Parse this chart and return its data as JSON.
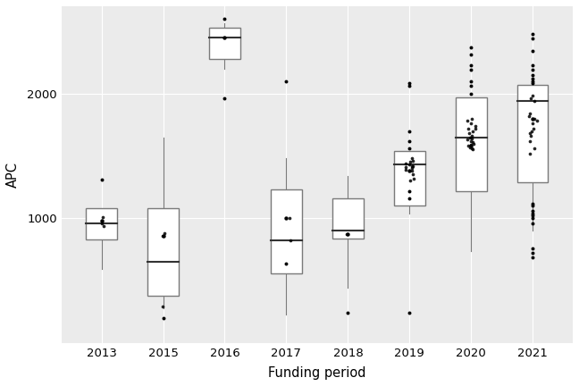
{
  "title": "",
  "xlabel": "Funding period",
  "ylabel": "APC",
  "background_color": "#ffffff",
  "panel_color": "#ebebeb",
  "grid_color": "#ffffff",
  "years": [
    "2013",
    "2015",
    "2016",
    "2017",
    "2018",
    "2019",
    "2020",
    "2021"
  ],
  "box_data": {
    "2013": {
      "q1": 830,
      "median": 960,
      "q3": 1080,
      "mean": 980,
      "whisker_low": 590,
      "whisker_high": 1080,
      "outliers": [
        1310
      ],
      "data_pts": [
        960,
        940,
        1010,
        980
      ]
    },
    "2015": {
      "q1": 380,
      "median": 650,
      "q3": 1080,
      "mean": 860,
      "whisker_low": 280,
      "whisker_high": 1650,
      "outliers": [
        200
      ],
      "data_pts": [
        860,
        880,
        290
      ]
    },
    "2016": {
      "q1": 2280,
      "median": 2450,
      "q3": 2530,
      "mean": 2450,
      "whisker_low": 2200,
      "whisker_high": 2560,
      "outliers": [
        1960,
        2600
      ],
      "data_pts": []
    },
    "2017": {
      "q1": 560,
      "median": 820,
      "q3": 1230,
      "mean": 1000,
      "whisker_low": 230,
      "whisker_high": 1480,
      "outliers": [
        2100,
        640
      ],
      "data_pts": [
        1000,
        820
      ]
    },
    "2018": {
      "q1": 840,
      "median": 900,
      "q3": 1160,
      "mean": 870,
      "whisker_low": 440,
      "whisker_high": 1340,
      "outliers": [
        240
      ],
      "data_pts": [
        870
      ]
    },
    "2019": {
      "q1": 1100,
      "median": 1430,
      "q3": 1540,
      "mean": 1380,
      "whisker_low": 1040,
      "whisker_high": 1540,
      "outliers": [
        240,
        2080,
        2060,
        1700,
        1620,
        1560,
        1220,
        1160
      ],
      "data_pts": [
        1380,
        1300,
        1450,
        1420,
        1410,
        1390,
        1440,
        1460,
        1480,
        1350,
        1320,
        1400,
        1430,
        1415
      ]
    },
    "2020": {
      "q1": 1220,
      "median": 1650,
      "q3": 1970,
      "mean": 1580,
      "whisker_low": 740,
      "whisker_high": 1970,
      "outliers": [
        2370,
        2310,
        2230,
        2190,
        2100,
        2060,
        2000
      ],
      "data_pts": [
        1580,
        1700,
        1720,
        1740,
        1760,
        1650,
        1680,
        1600,
        1620,
        1560,
        1780,
        1800,
        1640,
        1660,
        1720,
        1550,
        1570,
        1590,
        1610,
        1630
      ]
    },
    "2021": {
      "q1": 1290,
      "median": 1940,
      "q3": 2070,
      "mean": 1800,
      "whisker_low": 900,
      "whisker_high": 2070,
      "outliers": [
        2480,
        2440,
        2340,
        2230,
        2190,
        2150,
        2120,
        2100,
        2080,
        690,
        720,
        760,
        960,
        1000,
        1020,
        1040,
        1060,
        1100,
        1120
      ],
      "data_pts": [
        1800,
        1560,
        1520,
        1620,
        1660,
        1700,
        1720,
        1760,
        1780,
        1820,
        1840,
        1680,
        1940,
        1960,
        1980
      ]
    }
  },
  "ylim": [
    0,
    2700
  ],
  "yticks": [
    1000,
    2000
  ],
  "box_color": "#ffffff",
  "box_edge_color": "#7a7a7a",
  "median_color": "#333333",
  "whisker_color": "#7a7a7a",
  "outlier_color": "#000000",
  "mean_color": "#000000",
  "box_width": 0.5,
  "figsize": [
    6.48,
    4.32
  ],
  "dpi": 100
}
